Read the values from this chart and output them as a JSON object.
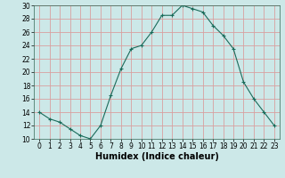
{
  "xlabel": "Humidex (Indice chaleur)",
  "x": [
    0,
    1,
    2,
    3,
    4,
    5,
    6,
    7,
    8,
    9,
    10,
    11,
    12,
    13,
    14,
    15,
    16,
    17,
    18,
    19,
    20,
    21,
    22,
    23
  ],
  "y": [
    14,
    13,
    12.5,
    11.5,
    10.5,
    10,
    12,
    16.5,
    20.5,
    23.5,
    24,
    26,
    28.5,
    28.5,
    30,
    29.5,
    29,
    27,
    25.5,
    23.5,
    18.5,
    16,
    14,
    12
  ],
  "line_color": "#1a6b5a",
  "marker": "+",
  "marker_color": "#1a6b5a",
  "bg_color": "#cce8e8",
  "grid_color": "#d8a0a0",
  "ylim": [
    10,
    30
  ],
  "xlim_min": -0.5,
  "xlim_max": 23.5,
  "yticks": [
    10,
    12,
    14,
    16,
    18,
    20,
    22,
    24,
    26,
    28,
    30
  ],
  "xticks": [
    0,
    1,
    2,
    3,
    4,
    5,
    6,
    7,
    8,
    9,
    10,
    11,
    12,
    13,
    14,
    15,
    16,
    17,
    18,
    19,
    20,
    21,
    22,
    23
  ],
  "tick_fontsize": 5.5,
  "xlabel_fontsize": 7,
  "marker_size": 3
}
